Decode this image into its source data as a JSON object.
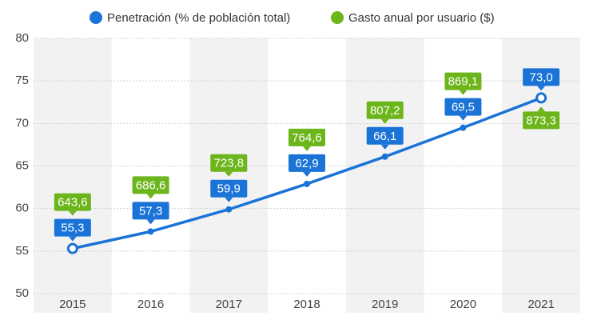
{
  "chart_data": {
    "type": "line",
    "categories": [
      "2015",
      "2016",
      "2017",
      "2018",
      "2019",
      "2020",
      "2021"
    ],
    "series": [
      {
        "name": "Penetración (% de población total)",
        "color": "#1a73d6",
        "values": [
          55.3,
          57.3,
          59.9,
          62.9,
          66.1,
          69.5,
          73.0
        ],
        "value_labels": [
          "55,3",
          "57,3",
          "59,9",
          "62,9",
          "66,1",
          "69,5",
          "73,0"
        ]
      },
      {
        "name": "Gasto anual por usuario ($)",
        "color": "#6cb51b",
        "values": [
          643.6,
          686.6,
          723.8,
          764.6,
          807.2,
          869.1,
          873.3
        ],
        "value_labels": [
          "643,6",
          "686,6",
          "723,8",
          "764,6",
          "807,2",
          "869,1",
          "873,3"
        ]
      }
    ],
    "ylim": [
      50,
      80
    ],
    "yticks": [
      50,
      55,
      60,
      65,
      70,
      75,
      80
    ],
    "grid": true
  }
}
